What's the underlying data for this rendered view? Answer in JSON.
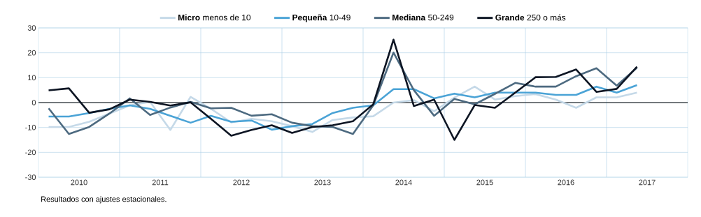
{
  "chart_data": {
    "type": "line",
    "x": [
      2009.625,
      2009.875,
      2010.125,
      2010.375,
      2010.625,
      2010.875,
      2011.125,
      2011.375,
      2011.625,
      2011.875,
      2012.125,
      2012.375,
      2012.625,
      2012.875,
      2013.125,
      2013.375,
      2013.625,
      2013.875,
      2014.125,
      2014.375,
      2014.625,
      2014.875,
      2015.125,
      2015.375,
      2015.625,
      2015.875,
      2016.125,
      2016.375,
      2016.625,
      2016.875
    ],
    "series": [
      {
        "name": "**Micro** menos de 10",
        "color": "#c5d9e8",
        "values": [
          -9.8,
          -9.8,
          -7.7,
          -4.4,
          -1.1,
          0.3,
          -11,
          2.3,
          -2.5,
          -8,
          -6.5,
          -7.5,
          -9.5,
          -11.8,
          -7,
          -6,
          -5.5,
          0,
          1,
          -3.5,
          2,
          6.4,
          1.2,
          2.6,
          3.4,
          1.2,
          -2.1,
          2.1,
          2.1,
          4
        ]
      },
      {
        "name": "**Pequeña** 10-49",
        "color": "#4aa3d6",
        "values": [
          -5.6,
          -5.6,
          -4.2,
          -2.5,
          -1.1,
          -2.5,
          -5.3,
          -8.1,
          -5.3,
          -7.7,
          -7.2,
          -10.9,
          -9.5,
          -8.6,
          -4.2,
          -2.1,
          -1.1,
          5.4,
          5.4,
          1.7,
          3.6,
          2.1,
          4,
          4,
          4,
          3.1,
          3.1,
          6.4,
          4,
          7
        ]
      },
      {
        "name": "**Mediana** 50-249",
        "color": "#4d6a80",
        "values": [
          -2.3,
          -12.6,
          -9.8,
          -4.4,
          1.7,
          -5,
          -2,
          0.3,
          -2.3,
          -2.1,
          -5.3,
          -4.7,
          -8.1,
          -9.5,
          -9.8,
          -12.6,
          -1.1,
          20.1,
          5,
          -5.3,
          1.5,
          -0.7,
          3.5,
          7.9,
          6.4,
          6.4,
          10.6,
          13.8,
          6.8,
          14
        ]
      },
      {
        "name": "**Grande** 250 o más",
        "color": "#0d1523",
        "values": [
          4.9,
          5.7,
          -4.1,
          -2.7,
          1.2,
          0.3,
          -1.2,
          0.1,
          -6.5,
          -13.3,
          -11,
          -9.1,
          -12.2,
          -9.8,
          -9.1,
          -7.5,
          -0.7,
          25.3,
          -1.4,
          1.2,
          -15,
          -1,
          -2.1,
          4,
          10.2,
          10.3,
          13.3,
          4.3,
          5.5,
          14.4
        ]
      }
    ],
    "xlim": [
      2009.5,
      2017.5
    ],
    "xticks": [
      2010,
      2011,
      2012,
      2013,
      2014,
      2015,
      2016,
      2017
    ],
    "ylim": [
      -30,
      30
    ],
    "yticks": [
      -30,
      -20,
      -10,
      0,
      10,
      20,
      30
    ],
    "grid": "y",
    "ref_lines": [
      {
        "axis": "x",
        "value": 2010.5,
        "color": "#a9cfe6"
      },
      {
        "axis": "x",
        "value": 2011.5,
        "color": "#a9cfe6"
      },
      {
        "axis": "x",
        "value": 2012.5,
        "color": "#a9cfe6"
      },
      {
        "axis": "x",
        "value": 2013.5,
        "color": "#a9cfe6"
      },
      {
        "axis": "x",
        "value": 2014.5,
        "color": "#a9cfe6"
      },
      {
        "axis": "x",
        "value": 2015.5,
        "color": "#a9cfe6"
      },
      {
        "axis": "x",
        "value": 2016.5,
        "color": "#a9cfe6"
      },
      {
        "axis": "y",
        "value": 0,
        "color": "#000000"
      }
    ],
    "legend": "top",
    "marker": "none",
    "line_style": "solid",
    "annotations": [
      "Resultados con ajustes estacionales."
    ]
  }
}
